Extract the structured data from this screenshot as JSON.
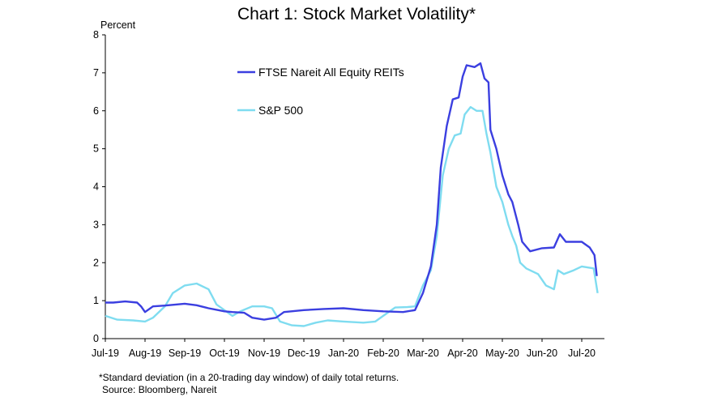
{
  "chart_data": {
    "type": "line",
    "title": "Chart 1: Stock Market Volatility*",
    "ylabel": "Percent",
    "xlabel": "",
    "ylim": [
      0,
      8
    ],
    "yticks": [
      0,
      1,
      2,
      3,
      4,
      5,
      6,
      7,
      8
    ],
    "x_tick_labels": [
      "Jul-19",
      "Aug-19",
      "Sep-19",
      "Oct-19",
      "Nov-19",
      "Dec-19",
      "Jan-20",
      "Feb-20",
      "Mar-20",
      "Apr-20",
      "May-20",
      "Jun-20",
      "Jul-20"
    ],
    "x_unit": "month index (0 = Jul-19)",
    "xlim": [
      0,
      12.4
    ],
    "legend_position": "inside-top-left",
    "grid": false,
    "series": [
      {
        "name": "FTSE Nareit All Equity REITs",
        "color": "#3b3fe0",
        "points": [
          [
            0,
            0.95
          ],
          [
            0.2,
            0.95
          ],
          [
            0.5,
            0.98
          ],
          [
            0.8,
            0.95
          ],
          [
            0.9,
            0.85
          ],
          [
            1.0,
            0.7
          ],
          [
            1.2,
            0.85
          ],
          [
            1.5,
            0.87
          ],
          [
            2.0,
            0.92
          ],
          [
            2.3,
            0.88
          ],
          [
            2.6,
            0.8
          ],
          [
            3.0,
            0.72
          ],
          [
            3.2,
            0.7
          ],
          [
            3.5,
            0.68
          ],
          [
            3.7,
            0.55
          ],
          [
            4.0,
            0.5
          ],
          [
            4.3,
            0.55
          ],
          [
            4.5,
            0.7
          ],
          [
            5.0,
            0.75
          ],
          [
            5.5,
            0.78
          ],
          [
            6.0,
            0.8
          ],
          [
            6.5,
            0.75
          ],
          [
            7.0,
            0.72
          ],
          [
            7.5,
            0.7
          ],
          [
            7.8,
            0.75
          ],
          [
            8.0,
            1.2
          ],
          [
            8.2,
            1.9
          ],
          [
            8.35,
            3.0
          ],
          [
            8.45,
            4.5
          ],
          [
            8.6,
            5.6
          ],
          [
            8.75,
            6.3
          ],
          [
            8.9,
            6.35
          ],
          [
            9.0,
            6.9
          ],
          [
            9.1,
            7.2
          ],
          [
            9.3,
            7.15
          ],
          [
            9.45,
            7.25
          ],
          [
            9.55,
            6.85
          ],
          [
            9.65,
            6.75
          ],
          [
            9.7,
            5.5
          ],
          [
            9.85,
            5.0
          ],
          [
            10.0,
            4.3
          ],
          [
            10.15,
            3.8
          ],
          [
            10.25,
            3.6
          ],
          [
            10.4,
            3.0
          ],
          [
            10.5,
            2.55
          ],
          [
            10.7,
            2.3
          ],
          [
            11.0,
            2.38
          ],
          [
            11.3,
            2.4
          ],
          [
            11.45,
            2.75
          ],
          [
            11.6,
            2.55
          ],
          [
            12.0,
            2.55
          ],
          [
            12.2,
            2.4
          ],
          [
            12.32,
            2.2
          ],
          [
            12.38,
            1.65
          ]
        ]
      },
      {
        "name": "S&P 500",
        "color": "#7fdcf0",
        "points": [
          [
            0,
            0.6
          ],
          [
            0.3,
            0.5
          ],
          [
            0.7,
            0.48
          ],
          [
            1.0,
            0.45
          ],
          [
            1.2,
            0.55
          ],
          [
            1.5,
            0.85
          ],
          [
            1.7,
            1.2
          ],
          [
            2.0,
            1.4
          ],
          [
            2.3,
            1.45
          ],
          [
            2.6,
            1.3
          ],
          [
            2.8,
            0.9
          ],
          [
            3.0,
            0.75
          ],
          [
            3.2,
            0.6
          ],
          [
            3.4,
            0.72
          ],
          [
            3.7,
            0.85
          ],
          [
            4.0,
            0.85
          ],
          [
            4.2,
            0.8
          ],
          [
            4.4,
            0.45
          ],
          [
            4.7,
            0.35
          ],
          [
            5.0,
            0.33
          ],
          [
            5.3,
            0.42
          ],
          [
            5.6,
            0.48
          ],
          [
            6.0,
            0.45
          ],
          [
            6.5,
            0.42
          ],
          [
            6.8,
            0.45
          ],
          [
            7.0,
            0.6
          ],
          [
            7.3,
            0.82
          ],
          [
            7.6,
            0.83
          ],
          [
            7.8,
            0.85
          ],
          [
            8.0,
            1.4
          ],
          [
            8.2,
            1.8
          ],
          [
            8.35,
            2.7
          ],
          [
            8.5,
            4.3
          ],
          [
            8.65,
            5.0
          ],
          [
            8.8,
            5.35
          ],
          [
            8.95,
            5.4
          ],
          [
            9.05,
            5.9
          ],
          [
            9.2,
            6.1
          ],
          [
            9.35,
            6.0
          ],
          [
            9.5,
            6.0
          ],
          [
            9.6,
            5.4
          ],
          [
            9.7,
            4.9
          ],
          [
            9.85,
            4.0
          ],
          [
            10.0,
            3.6
          ],
          [
            10.15,
            3.0
          ],
          [
            10.25,
            2.7
          ],
          [
            10.35,
            2.45
          ],
          [
            10.45,
            2.0
          ],
          [
            10.6,
            1.85
          ],
          [
            10.9,
            1.7
          ],
          [
            11.1,
            1.4
          ],
          [
            11.3,
            1.3
          ],
          [
            11.4,
            1.8
          ],
          [
            11.55,
            1.7
          ],
          [
            11.8,
            1.8
          ],
          [
            12.0,
            1.9
          ],
          [
            12.3,
            1.85
          ],
          [
            12.4,
            1.2
          ]
        ]
      }
    ]
  },
  "footnote": {
    "line1": "*Standard deviation (in a 20-trading day window) of daily total returns.",
    "line2": "Source: Bloomberg, Nareit"
  }
}
